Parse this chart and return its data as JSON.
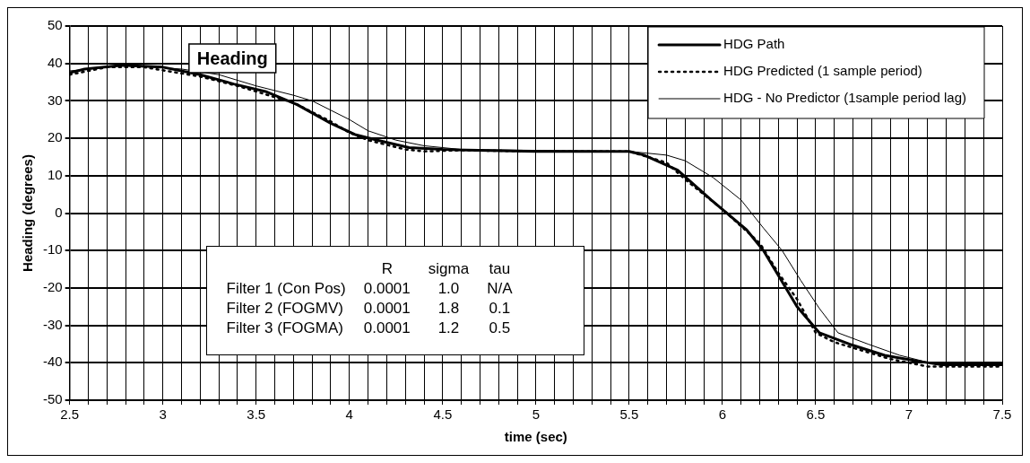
{
  "chart_data": {
    "type": "line",
    "title": "Heading",
    "xlabel": "time (sec)",
    "ylabel": "Heading (degrees)",
    "xlim": [
      2.5,
      7.5
    ],
    "ylim": [
      -50,
      50
    ],
    "xticks": [
      2.5,
      {
        "value": 2.6,
        "label": null
      },
      {
        "value": 2.7,
        "label": null
      },
      {
        "value": 2.8,
        "label": null
      },
      {
        "value": 2.9,
        "label": null
      },
      3,
      {
        "value": 3.1,
        "label": null
      },
      {
        "value": 3.2,
        "label": null
      },
      {
        "value": 3.3,
        "label": null
      },
      {
        "value": 3.4,
        "label": null
      },
      3.5,
      {
        "value": 3.6,
        "label": null
      },
      {
        "value": 3.7,
        "label": null
      },
      {
        "value": 3.8,
        "label": null
      },
      {
        "value": 3.9,
        "label": null
      },
      4,
      {
        "value": 4.1,
        "label": null
      },
      {
        "value": 4.2,
        "label": null
      },
      {
        "value": 4.3,
        "label": null
      },
      {
        "value": 4.4,
        "label": null
      },
      4.5,
      {
        "value": 4.6,
        "label": null
      },
      {
        "value": 4.7,
        "label": null
      },
      {
        "value": 4.8,
        "label": null
      },
      {
        "value": 4.9,
        "label": null
      },
      5,
      {
        "value": 5.1,
        "label": null
      },
      {
        "value": 5.2,
        "label": null
      },
      {
        "value": 5.3,
        "label": null
      },
      {
        "value": 5.4,
        "label": null
      },
      5.5,
      {
        "value": 5.6,
        "label": null
      },
      {
        "value": 5.7,
        "label": null
      },
      {
        "value": 5.8,
        "label": null
      },
      {
        "value": 5.9,
        "label": null
      },
      6,
      {
        "value": 6.1,
        "label": null
      },
      {
        "value": 6.2,
        "label": null
      },
      {
        "value": 6.3,
        "label": null
      },
      {
        "value": 6.4,
        "label": null
      },
      6.5,
      {
        "value": 6.6,
        "label": null
      },
      {
        "value": 6.7,
        "label": null
      },
      {
        "value": 6.8,
        "label": null
      },
      {
        "value": 6.9,
        "label": null
      },
      7,
      {
        "value": 7.1,
        "label": null
      },
      {
        "value": 7.2,
        "label": null
      },
      {
        "value": 7.3,
        "label": null
      },
      {
        "value": 7.4,
        "label": null
      },
      7.5
    ],
    "yticks": [
      -50,
      -40,
      -30,
      -20,
      -10,
      0,
      10,
      20,
      30,
      40,
      50
    ],
    "grid": true,
    "legend": "top right",
    "series": [
      {
        "name": "HDG Path",
        "color": "#000000",
        "line_style": "solid",
        "x": [
          2.5,
          2.58,
          2.78,
          3.0,
          3.2,
          3.38,
          3.55,
          3.72,
          3.9,
          4.03,
          4.15,
          4.32,
          4.5,
          5.0,
          5.5,
          5.58,
          5.76,
          5.94,
          6.13,
          6.22,
          6.31,
          6.4,
          6.52,
          6.68,
          6.87,
          7.05,
          7.17,
          7.5
        ],
        "values": [
          37.5,
          38.5,
          39.5,
          39,
          37,
          34.5,
          32.5,
          29,
          24,
          21,
          19.5,
          17.5,
          17,
          16.5,
          16.5,
          15.5,
          11.5,
          3.5,
          -4.5,
          -10,
          -17.5,
          -25,
          -32,
          -35,
          -38,
          -39.6,
          -40.5,
          -40.5
        ]
      },
      {
        "name": "HDG Predicted (1 sample period)",
        "color": "#000000",
        "line_style": "dotted",
        "x": [
          2.5,
          2.7,
          2.9,
          3.2,
          3.4,
          3.6,
          3.7,
          3.9,
          4.0,
          4.1,
          4.3,
          4.4,
          4.6,
          5.0,
          5.5,
          5.7,
          5.8,
          5.9,
          6.0,
          6.1,
          6.2,
          6.3,
          6.4,
          6.5,
          6.6,
          6.7,
          6.9,
          7.1,
          7.3,
          7.5
        ],
        "values": [
          37,
          39,
          39,
          36.5,
          34,
          31,
          29.5,
          24.5,
          21.5,
          19.5,
          17,
          16.5,
          16.8,
          16.5,
          16.5,
          13.5,
          9,
          5,
          1,
          -3.5,
          -8,
          -16,
          -23,
          -32,
          -34.5,
          -36,
          -39,
          -41,
          -41,
          -41
        ]
      },
      {
        "name": "HDG - No Predictor (1sample period lag)",
        "color": "#000000",
        "line_style": "solid",
        "x": [
          2.5,
          2.8,
          3.1,
          3.3,
          3.5,
          3.7,
          3.8,
          4.0,
          4.1,
          4.25,
          4.4,
          4.6,
          5.5,
          5.7,
          5.8,
          5.95,
          6.1,
          6.22,
          6.32,
          6.42,
          6.52,
          6.62,
          6.78,
          6.95,
          7.15,
          7.5
        ],
        "values": [
          38,
          39.5,
          38.5,
          37,
          34,
          31.5,
          30,
          25,
          22,
          19.5,
          18,
          17,
          16.5,
          15.5,
          14,
          9.5,
          3.5,
          -4,
          -10,
          -18,
          -25.5,
          -32,
          -35,
          -38,
          -40.5,
          -40.5
        ]
      }
    ],
    "annotations": [
      "\tR\tsigma\ttau",
      "Filter 1 (Con Pos)\t0.0001\t1.0\tN/A",
      "Filter 2 (FOGMV)\t0.0001\t1.8\t0.1",
      "Filter 3 (FOGMA)\t0.0001\t1.2\t0.5"
    ]
  }
}
